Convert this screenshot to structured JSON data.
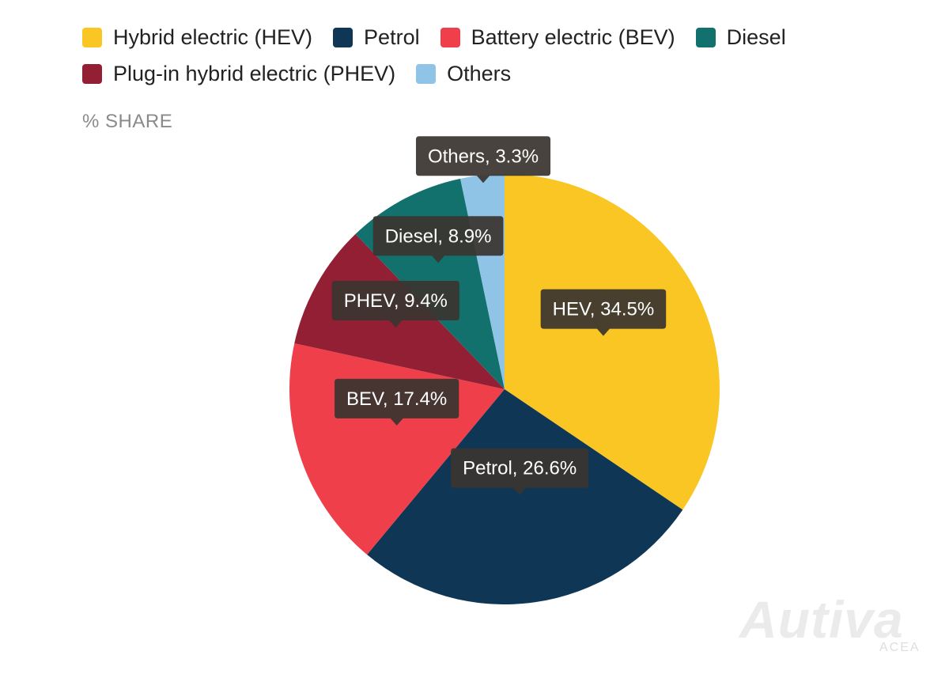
{
  "legend": {
    "rows": [
      [
        {
          "label": "Hybrid electric (HEV)",
          "color": "#F9C623"
        },
        {
          "label": "Petrol",
          "color": "#0F3654"
        },
        {
          "label": "Battery electric (BEV)",
          "color": "#EE3F4A"
        },
        {
          "label": "Diesel",
          "color": "#12716C"
        }
      ],
      [
        {
          "label": "Plug-in hybrid electric (PHEV)",
          "color": "#921F33"
        },
        {
          "label": "Others",
          "color": "#8FC4E6"
        }
      ]
    ]
  },
  "unit_label": "% SHARE",
  "watermark": {
    "brand": "Autiva",
    "sub": "ACEA"
  },
  "chart_data": {
    "type": "pie",
    "title": "",
    "unit": "% SHARE",
    "legend_position": "top",
    "slices": [
      {
        "name": "Hybrid electric (HEV)",
        "short": "HEV",
        "value": 34.5,
        "color": "#F9C623",
        "tooltip": "HEV, 34.5%"
      },
      {
        "name": "Petrol",
        "short": "Petrol",
        "value": 26.6,
        "color": "#0F3654",
        "tooltip": "Petrol, 26.6%"
      },
      {
        "name": "Battery electric (BEV)",
        "short": "BEV",
        "value": 17.4,
        "color": "#EE3F4A",
        "tooltip": "BEV, 17.4%"
      },
      {
        "name": "Plug-in hybrid electric (PHEV)",
        "short": "PHEV",
        "value": 9.4,
        "color": "#921F33",
        "tooltip": "PHEV, 9.4%"
      },
      {
        "name": "Diesel",
        "short": "Diesel",
        "value": 8.9,
        "color": "#12716C",
        "tooltip": "Diesel, 8.9%"
      },
      {
        "name": "Others",
        "short": "Others",
        "value": 3.3,
        "color": "#8FC4E6",
        "tooltip": "Others, 3.3%"
      }
    ]
  }
}
